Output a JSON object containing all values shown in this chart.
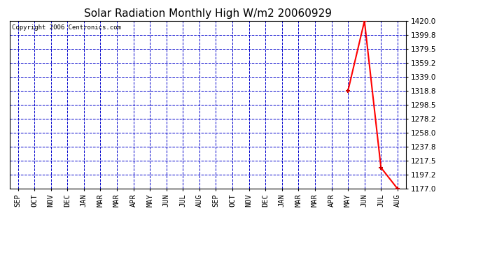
{
  "title": "Solar Radiation Monthly High W/m2 20060929",
  "copyright_text": "Copyright 2006 Centronics.com",
  "x_labels": [
    "SEP",
    "OCT",
    "NOV",
    "DEC",
    "JAN",
    "MAR",
    "MAR",
    "APR",
    "MAY",
    "JUN",
    "JUL",
    "AUG",
    "SEP",
    "OCT",
    "NOV",
    "DEC",
    "JAN",
    "MAR",
    "MAR",
    "APR",
    "MAY",
    "JUN",
    "JUL",
    "AUG"
  ],
  "num_points": 24,
  "data_values_all": [
    null,
    null,
    null,
    null,
    null,
    null,
    null,
    null,
    null,
    null,
    null,
    null,
    null,
    null,
    null,
    null,
    null,
    null,
    null,
    null,
    1318.8,
    1420.0,
    1207.5,
    1177.0
  ],
  "ylim_min": 1177.0,
  "ylim_max": 1420.0,
  "yticks": [
    1177.0,
    1197.2,
    1217.5,
    1237.8,
    1258.0,
    1278.2,
    1298.5,
    1318.8,
    1339.0,
    1359.2,
    1379.5,
    1399.8,
    1420.0
  ],
  "line_color": "#ff0000",
  "marker_color": "#cc0000",
  "grid_color": "#0000cc",
  "bg_color": "#ffffff",
  "plot_bg_color": "#ffffff",
  "title_fontsize": 11,
  "tick_fontsize": 7.5,
  "copyright_fontsize": 6.5
}
